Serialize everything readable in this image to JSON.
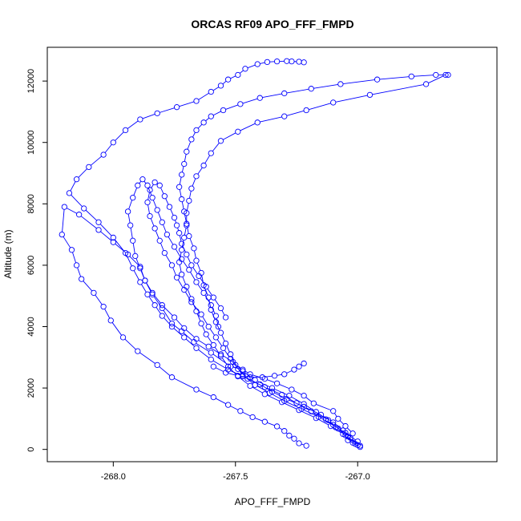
{
  "chart_data": {
    "type": "scatter",
    "title": "ORCAS RF09 APO_FFF_FMPD",
    "xlabel": "APO_FFF_FMPD",
    "ylabel": "Altitude (m)",
    "xlim": [
      -268.27,
      -266.43
    ],
    "ylim": [
      -400,
      13100
    ],
    "x_ticks": [
      -268.0,
      -267.5,
      -267.0
    ],
    "x_tick_labels": [
      "-268.0",
      "-267.5",
      "-267.0"
    ],
    "y_ticks": [
      0,
      2000,
      4000,
      6000,
      8000,
      10000,
      12000
    ],
    "y_tick_labels": [
      "0",
      "2000",
      "4000",
      "6000",
      "8000",
      "10000",
      "12000"
    ],
    "grid": false,
    "legend": "none",
    "color": "#0000ff",
    "series": [
      {
        "x": [
          -266.99,
          -267.04,
          -267.02,
          -267.05,
          -267.08,
          -267.1,
          -267.18,
          -267.22,
          -267.27,
          -267.33,
          -267.38,
          -267.44,
          -267.47,
          -267.52,
          -267.6,
          -267.67,
          -267.72,
          -267.76,
          -267.8,
          -267.84,
          -267.87,
          -267.89,
          -267.94,
          -268.0,
          -268.06,
          -268.14,
          -268.2,
          -268.21,
          -268.17,
          -268.15,
          -268.13,
          -268.08,
          -268.04,
          -268.01,
          -267.96,
          -267.9,
          -267.82,
          -267.76,
          -267.66,
          -267.59,
          -267.53,
          -267.48,
          -267.43,
          -267.38,
          -267.33,
          -267.3,
          -267.28,
          -267.26,
          -267.24,
          -267.21
        ],
        "y": [
          80,
          300,
          520,
          760,
          1000,
          1250,
          1500,
          1750,
          1950,
          2150,
          2300,
          2450,
          2600,
          2700,
          3150,
          3500,
          3850,
          4100,
          4600,
          5050,
          5500,
          5950,
          6350,
          6750,
          7150,
          7650,
          7900,
          7000,
          6500,
          6000,
          5550,
          5100,
          4650,
          4200,
          3650,
          3200,
          2750,
          2350,
          1950,
          1700,
          1450,
          1250,
          1050,
          900,
          750,
          600,
          450,
          350,
          200,
          120
        ]
      },
      {
        "x": [
          -266.99,
          -267.03,
          -267.06,
          -267.1,
          -267.15,
          -267.22,
          -267.29,
          -267.35,
          -267.4,
          -267.47,
          -267.53,
          -267.6,
          -267.66,
          -267.71,
          -267.76,
          -267.8,
          -267.83,
          -267.86,
          -267.89,
          -267.92,
          -267.95,
          -268.0,
          -268.06,
          -268.12,
          -268.18,
          -268.15,
          -268.1,
          -268.04,
          -268.0,
          -267.95,
          -267.89,
          -267.82,
          -267.74,
          -267.66,
          -267.6,
          -267.56,
          -267.53,
          -267.49,
          -267.46,
          -267.41,
          -267.37,
          -267.33,
          -267.29,
          -267.27,
          -267.24,
          -267.22
        ],
        "y": [
          120,
          380,
          620,
          880,
          1130,
          1390,
          1640,
          1880,
          2120,
          2380,
          2600,
          2930,
          3300,
          3650,
          4000,
          4350,
          4700,
          5050,
          5450,
          5900,
          6400,
          6900,
          7400,
          7850,
          8350,
          8800,
          9200,
          9600,
          10000,
          10400,
          10750,
          10950,
          11150,
          11350,
          11650,
          11850,
          12050,
          12200,
          12400,
          12550,
          12620,
          12640,
          12650,
          12640,
          12630,
          12610
        ]
      },
      {
        "x": [
          -267.0,
          -267.04,
          -267.08,
          -267.12,
          -267.17,
          -267.22,
          -267.28,
          -267.35,
          -267.42,
          -267.47,
          -267.51,
          -267.56,
          -267.61,
          -267.66,
          -267.71,
          -267.75,
          -267.8,
          -267.84,
          -267.87,
          -267.89,
          -267.91,
          -267.92,
          -267.93,
          -267.94,
          -267.92,
          -267.9,
          -267.88,
          -267.86,
          -267.84,
          -267.82,
          -267.8,
          -267.78,
          -267.75,
          -267.72,
          -267.69,
          -267.66,
          -267.63,
          -267.6,
          -267.58,
          -267.57
        ],
        "y": [
          140,
          420,
          680,
          950,
          1220,
          1480,
          1750,
          2000,
          2260,
          2550,
          2850,
          3100,
          3350,
          3600,
          3950,
          4300,
          4700,
          5100,
          5500,
          5900,
          6300,
          6800,
          7300,
          7750,
          8200,
          8600,
          8800,
          8600,
          8200,
          7800,
          7400,
          7000,
          6600,
          6200,
          5850,
          5450,
          5100,
          4700,
          4350,
          4000
        ]
      },
      {
        "x": [
          -267.01,
          -267.05,
          -267.09,
          -267.13,
          -267.19,
          -267.25,
          -267.31,
          -267.38,
          -267.45,
          -267.49,
          -267.52,
          -267.55,
          -267.58,
          -267.61,
          -267.64,
          -267.68,
          -267.71,
          -267.74,
          -267.76,
          -267.79,
          -267.81,
          -267.83,
          -267.85,
          -267.86,
          -267.85,
          -267.83,
          -267.81,
          -267.79,
          -267.77,
          -267.75,
          -267.74,
          -267.73,
          -267.72,
          -267.7,
          -267.68,
          -267.65,
          -267.62,
          -267.59,
          -267.56,
          -267.54
        ],
        "y": [
          180,
          460,
          720,
          980,
          1240,
          1510,
          1780,
          2030,
          2300,
          2620,
          2950,
          3300,
          3650,
          4000,
          4400,
          4800,
          5200,
          5600,
          6000,
          6400,
          6800,
          7200,
          7600,
          8050,
          8450,
          8700,
          8600,
          8250,
          7900,
          7550,
          7300,
          7050,
          6700,
          6350,
          6000,
          5650,
          5300,
          4950,
          4600,
          4300
        ]
      },
      {
        "x": [
          -267.02,
          -267.06,
          -267.11,
          -267.17,
          -267.24,
          -267.31,
          -267.38,
          -267.44,
          -267.49,
          -267.53,
          -267.56,
          -267.59,
          -267.62,
          -267.64,
          -267.66,
          -267.68,
          -267.7,
          -267.72,
          -267.73,
          -267.72,
          -267.71,
          -267.7,
          -267.7,
          -267.69,
          -267.68,
          -267.66,
          -267.63,
          -267.6,
          -267.56,
          -267.49,
          -267.41,
          -267.3,
          -267.21,
          -267.1,
          -266.95,
          -266.72,
          -266.64
        ],
        "y": [
          220,
          500,
          760,
          1020,
          1280,
          1540,
          1800,
          2070,
          2380,
          2700,
          3050,
          3400,
          3750,
          4100,
          4500,
          4900,
          5300,
          5700,
          6100,
          6500,
          6900,
          7300,
          7700,
          8100,
          8500,
          8900,
          9250,
          9650,
          10050,
          10350,
          10650,
          10850,
          11050,
          11300,
          11550,
          11900,
          12200
        ]
      },
      {
        "x": [
          -267.0,
          -267.05,
          -267.1,
          -267.16,
          -267.23,
          -267.3,
          -267.36,
          -267.42,
          -267.47,
          -267.5,
          -267.52,
          -267.54,
          -267.56,
          -267.58,
          -267.6,
          -267.61,
          -267.63,
          -267.64,
          -267.66,
          -267.67,
          -267.69,
          -267.7,
          -267.71,
          -267.72,
          -267.73,
          -267.72,
          -267.71,
          -267.7,
          -267.68,
          -267.66,
          -267.63,
          -267.6,
          -267.55,
          -267.48,
          -267.4,
          -267.3,
          -267.19,
          -267.07,
          -266.92,
          -266.78,
          -266.68,
          -266.63
        ],
        "y": [
          260,
          540,
          800,
          1060,
          1320,
          1580,
          1840,
          2100,
          2420,
          2750,
          3100,
          3450,
          3800,
          4150,
          4550,
          4950,
          5350,
          5750,
          6150,
          6550,
          6950,
          7350,
          7750,
          8150,
          8550,
          8950,
          9300,
          9700,
          10100,
          10400,
          10650,
          10850,
          11050,
          11250,
          11450,
          11600,
          11750,
          11900,
          12050,
          12150,
          12200,
          12200
        ]
      },
      {
        "x": [
          -267.59,
          -267.54,
          -267.49,
          -267.44,
          -267.39,
          -267.34,
          -267.3,
          -267.26,
          -267.24,
          -267.22
        ],
        "y": [
          2700,
          2500,
          2400,
          2350,
          2350,
          2400,
          2450,
          2600,
          2700,
          2800
        ]
      }
    ]
  }
}
